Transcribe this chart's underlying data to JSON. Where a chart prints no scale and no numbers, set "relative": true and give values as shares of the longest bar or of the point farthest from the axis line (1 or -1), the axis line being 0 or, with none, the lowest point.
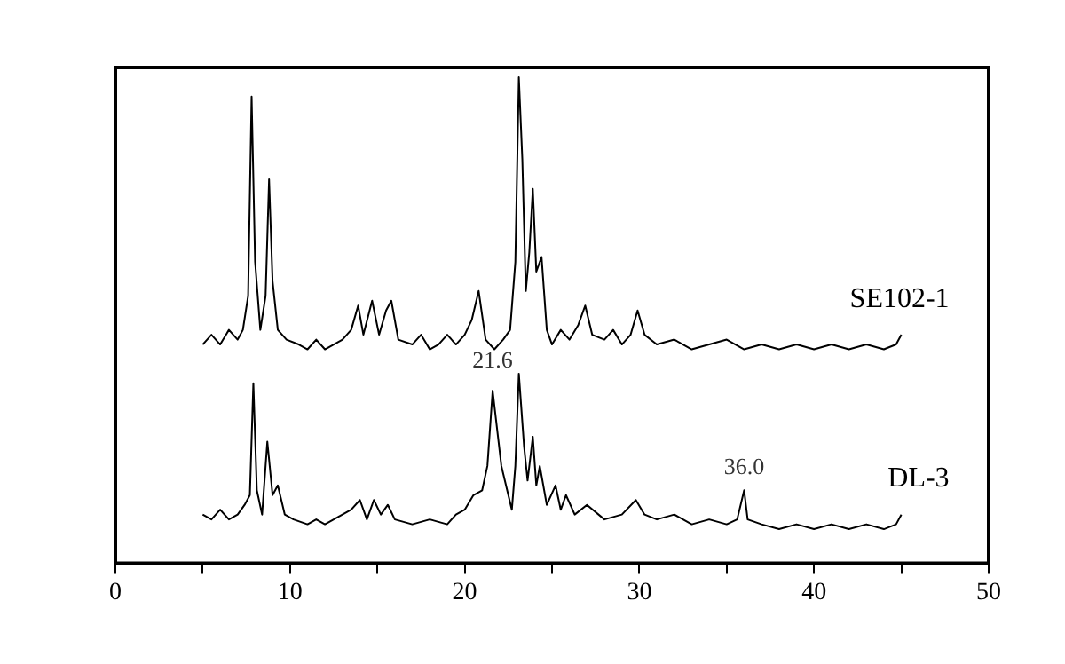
{
  "chart_data": {
    "type": "line",
    "relative": true,
    "grid": false,
    "legend": false,
    "marker": "none",
    "line_style": "solid",
    "tick_labels": "x",
    "xlim": [
      0,
      50
    ],
    "xticks": [
      0,
      {
        "value": 5,
        "label": null
      },
      10,
      {
        "value": 15,
        "label": null
      },
      20,
      {
        "value": 25,
        "label": null
      },
      30,
      {
        "value": 35,
        "label": null
      },
      40,
      {
        "value": 45,
        "label": null
      },
      50
    ],
    "series": [
      {
        "name": "SE102-1",
        "color": "#000000",
        "x": [
          5,
          5.5,
          6,
          6.5,
          7,
          7.3,
          7.6,
          7.8,
          8.0,
          8.3,
          8.6,
          8.8,
          9.0,
          9.3,
          9.8,
          10.5,
          11,
          11.5,
          12,
          12.5,
          13,
          13.5,
          13.9,
          14.2,
          14.7,
          15.1,
          15.5,
          15.8,
          16.2,
          17,
          17.5,
          18,
          18.5,
          19,
          19.5,
          20,
          20.4,
          20.8,
          21.2,
          21.7,
          22.2,
          22.6,
          22.9,
          23.1,
          23.3,
          23.5,
          23.7,
          23.9,
          24.1,
          24.4,
          24.7,
          25,
          25.5,
          26,
          26.5,
          26.9,
          27.3,
          28,
          28.5,
          29,
          29.5,
          29.9,
          30.3,
          31,
          32,
          33,
          34,
          35,
          36,
          37,
          38,
          39,
          40,
          41,
          42,
          43,
          44,
          44.7,
          45
        ],
        "values": [
          0.45,
          0.47,
          0.45,
          0.48,
          0.46,
          0.48,
          0.55,
          0.96,
          0.62,
          0.48,
          0.55,
          0.79,
          0.58,
          0.48,
          0.46,
          0.45,
          0.44,
          0.46,
          0.44,
          0.45,
          0.46,
          0.48,
          0.53,
          0.47,
          0.54,
          0.47,
          0.52,
          0.54,
          0.46,
          0.45,
          0.47,
          0.44,
          0.45,
          0.47,
          0.45,
          0.47,
          0.5,
          0.56,
          0.46,
          0.44,
          0.46,
          0.48,
          0.62,
          1.0,
          0.83,
          0.56,
          0.64,
          0.77,
          0.6,
          0.63,
          0.48,
          0.45,
          0.48,
          0.46,
          0.49,
          0.53,
          0.47,
          0.46,
          0.48,
          0.45,
          0.47,
          0.52,
          0.47,
          0.45,
          0.46,
          0.44,
          0.45,
          0.46,
          0.44,
          0.45,
          0.44,
          0.45,
          0.44,
          0.45,
          0.44,
          0.45,
          0.44,
          0.45,
          0.47
        ]
      },
      {
        "name": "DL-3",
        "color": "#000000",
        "x": [
          5,
          5.5,
          6,
          6.5,
          7,
          7.4,
          7.7,
          7.9,
          8.1,
          8.4,
          8.7,
          9.0,
          9.3,
          9.7,
          10.2,
          11,
          11.5,
          12,
          12.5,
          13,
          13.5,
          14,
          14.4,
          14.8,
          15.2,
          15.6,
          16,
          17,
          18,
          19,
          19.5,
          20,
          20.5,
          21,
          21.3,
          21.6,
          22.1,
          22.7,
          22.9,
          23.1,
          23.4,
          23.6,
          23.9,
          24.1,
          24.3,
          24.7,
          25.2,
          25.5,
          25.8,
          26.3,
          27,
          28,
          29,
          29.8,
          30.3,
          31,
          32,
          33,
          34,
          35,
          35.6,
          36.0,
          36.2,
          37,
          38,
          39,
          40,
          41,
          42,
          43,
          44,
          44.7,
          45
        ],
        "values": [
          0.1,
          0.09,
          0.11,
          0.09,
          0.1,
          0.12,
          0.14,
          0.37,
          0.15,
          0.1,
          0.25,
          0.14,
          0.16,
          0.1,
          0.09,
          0.08,
          0.09,
          0.08,
          0.09,
          0.1,
          0.11,
          0.13,
          0.09,
          0.13,
          0.1,
          0.12,
          0.09,
          0.08,
          0.09,
          0.08,
          0.1,
          0.11,
          0.14,
          0.15,
          0.2,
          0.355,
          0.2,
          0.11,
          0.2,
          0.39,
          0.24,
          0.17,
          0.26,
          0.16,
          0.2,
          0.12,
          0.16,
          0.11,
          0.14,
          0.1,
          0.12,
          0.09,
          0.1,
          0.13,
          0.1,
          0.09,
          0.1,
          0.08,
          0.09,
          0.08,
          0.09,
          0.15,
          0.09,
          0.08,
          0.07,
          0.08,
          0.07,
          0.08,
          0.07,
          0.08,
          0.07,
          0.08,
          0.1
        ]
      }
    ],
    "annotations": [
      {
        "text": "21.6",
        "x": 21.6,
        "y": 0.355
      },
      {
        "text": "36.0",
        "x": 36.0,
        "y": 0.15
      }
    ]
  }
}
